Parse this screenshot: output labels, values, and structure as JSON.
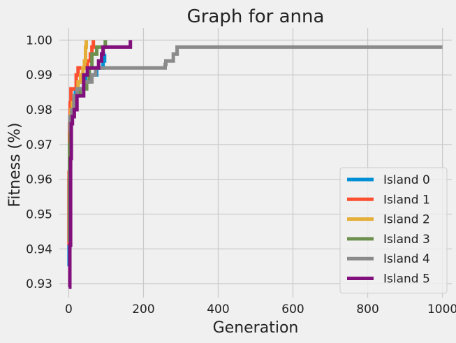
{
  "chart_data": {
    "type": "line",
    "title": "Graph for anna",
    "xlabel": "Generation",
    "ylabel": "Fitness (%)",
    "xlim": [
      -25,
      1025
    ],
    "ylim": [
      0.926,
      1.0035
    ],
    "xticks": [
      0,
      200,
      400,
      600,
      800,
      1000
    ],
    "yticks": [
      0.93,
      0.94,
      0.95,
      0.96,
      0.97,
      0.98,
      0.99,
      1.0
    ],
    "ytick_labels": [
      "0.93",
      "0.94",
      "0.95",
      "0.96",
      "0.97",
      "0.98",
      "0.99",
      "1.00"
    ],
    "grid": true,
    "legend_position": "lower-right",
    "series": [
      {
        "name": "Island 0",
        "color": "#008fd5",
        "points": [
          [
            0,
            0.935
          ],
          [
            1,
            0.96
          ],
          [
            2,
            0.972
          ],
          [
            4,
            0.976
          ],
          [
            8,
            0.98
          ],
          [
            12,
            0.984
          ],
          [
            18,
            0.986
          ],
          [
            25,
            0.988
          ],
          [
            35,
            0.988
          ],
          [
            45,
            0.99
          ],
          [
            55,
            0.99
          ],
          [
            65,
            0.99
          ],
          [
            75,
            0.992
          ],
          [
            85,
            0.992
          ],
          [
            92,
            0.994
          ],
          [
            96,
            0.996
          ],
          [
            98,
            0.996
          ]
        ]
      },
      {
        "name": "Island 1",
        "color": "#fc4f30",
        "points": [
          [
            0,
            0.941
          ],
          [
            1,
            0.962
          ],
          [
            2,
            0.976
          ],
          [
            4,
            0.982
          ],
          [
            6,
            0.986
          ],
          [
            15,
            0.986
          ],
          [
            20,
            0.99
          ],
          [
            25,
            0.992
          ],
          [
            40,
            0.992
          ],
          [
            50,
            0.994
          ],
          [
            58,
            0.996
          ],
          [
            62,
            0.998
          ],
          [
            66,
            1.0
          ]
        ]
      },
      {
        "name": "Island 2",
        "color": "#e5ae38",
        "points": [
          [
            0,
            0.974
          ],
          [
            3,
            0.978
          ],
          [
            6,
            0.98
          ],
          [
            10,
            0.982
          ],
          [
            18,
            0.984
          ],
          [
            25,
            0.988
          ],
          [
            32,
            0.99
          ],
          [
            38,
            0.992
          ],
          [
            42,
            0.994
          ],
          [
            45,
            0.998
          ],
          [
            47,
            1.0
          ]
        ]
      },
      {
        "name": "Island 3",
        "color": "#6d904f",
        "points": [
          [
            0,
            0.942
          ],
          [
            2,
            0.97
          ],
          [
            4,
            0.978
          ],
          [
            10,
            0.98
          ],
          [
            20,
            0.984
          ],
          [
            30,
            0.986
          ],
          [
            40,
            0.986
          ],
          [
            48,
            0.988
          ],
          [
            55,
            0.992
          ],
          [
            62,
            0.996
          ],
          [
            70,
            0.996
          ],
          [
            75,
            0.998
          ],
          [
            90,
            0.998
          ],
          [
            98,
            1.0
          ]
        ]
      },
      {
        "name": "Island 4",
        "color": "#8b8b8b",
        "points": [
          [
            0,
            0.974
          ],
          [
            3,
            0.978
          ],
          [
            8,
            0.98
          ],
          [
            14,
            0.984
          ],
          [
            22,
            0.986
          ],
          [
            32,
            0.986
          ],
          [
            40,
            0.988
          ],
          [
            55,
            0.988
          ],
          [
            62,
            0.99
          ],
          [
            72,
            0.992
          ],
          [
            255,
            0.992
          ],
          [
            258,
            0.993
          ],
          [
            260,
            0.994
          ],
          [
            278,
            0.994
          ],
          [
            280,
            0.996
          ],
          [
            288,
            0.996
          ],
          [
            290,
            0.998
          ],
          [
            1000,
            0.998
          ]
        ]
      },
      {
        "name": "Island 5",
        "color": "#810f7c",
        "points": [
          [
            0,
            0.929
          ],
          [
            3,
            0.941
          ],
          [
            5,
            0.966
          ],
          [
            7,
            0.976
          ],
          [
            10,
            0.978
          ],
          [
            15,
            0.98
          ],
          [
            22,
            0.984
          ],
          [
            35,
            0.984
          ],
          [
            40,
            0.99
          ],
          [
            45,
            0.99
          ],
          [
            50,
            0.992
          ],
          [
            75,
            0.992
          ],
          [
            80,
            0.994
          ],
          [
            88,
            0.996
          ],
          [
            92,
            0.998
          ],
          [
            162,
            0.998
          ],
          [
            165,
            1.0
          ]
        ]
      }
    ]
  }
}
